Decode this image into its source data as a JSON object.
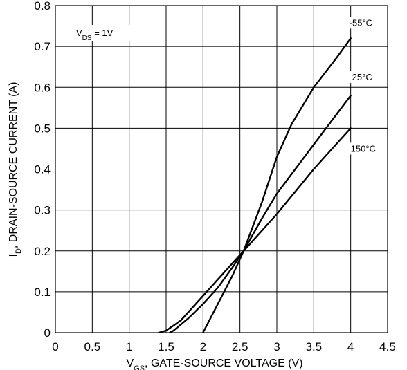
{
  "chart_data": {
    "type": "line",
    "title": "",
    "xlabel": {
      "symbol": "V",
      "subscript": "GS",
      "text": ", GATE-SOURCE VOLTAGE (V)"
    },
    "ylabel": {
      "symbol": "I",
      "subscript": "D",
      "text": ", DRAIN-SOURCE CURRENT (A)"
    },
    "xlim": [
      0,
      4.5
    ],
    "ylim": [
      0,
      0.8
    ],
    "xticks": [
      "0",
      "0.5",
      "1",
      "1.5",
      "2",
      "2.5",
      "3",
      "3.5",
      "4",
      "4.5"
    ],
    "yticks": [
      "0",
      "0.1",
      "0.2",
      "0.3",
      "0.4",
      "0.5",
      "0.6",
      "0.7",
      "0.8"
    ],
    "grid": true,
    "annotation": {
      "symbol": "V",
      "subscript": "DS",
      "text": " = 1V"
    },
    "line_color": "#000000",
    "grid_color": "#000000",
    "series": [
      {
        "name": "-55°C",
        "x": [
          2.0,
          2.2,
          2.4,
          2.55,
          2.8,
          3.0,
          3.2,
          3.5,
          3.8,
          4.0
        ],
        "y": [
          0.0,
          0.07,
          0.14,
          0.2,
          0.32,
          0.43,
          0.51,
          0.6,
          0.67,
          0.72
        ]
      },
      {
        "name": "25°C",
        "x": [
          1.55,
          1.6,
          1.8,
          2.0,
          2.2,
          2.4,
          2.55,
          2.8,
          3.0,
          3.5,
          4.0
        ],
        "y": [
          0.0,
          0.005,
          0.035,
          0.07,
          0.11,
          0.16,
          0.2,
          0.28,
          0.34,
          0.46,
          0.58
        ]
      },
      {
        "name": "150°C",
        "x": [
          1.4,
          1.5,
          1.7,
          2.0,
          2.3,
          2.55,
          2.8,
          3.0,
          3.5,
          3.8,
          4.0
        ],
        "y": [
          0.0,
          0.005,
          0.03,
          0.09,
          0.15,
          0.2,
          0.25,
          0.29,
          0.4,
          0.46,
          0.5
        ]
      }
    ]
  }
}
